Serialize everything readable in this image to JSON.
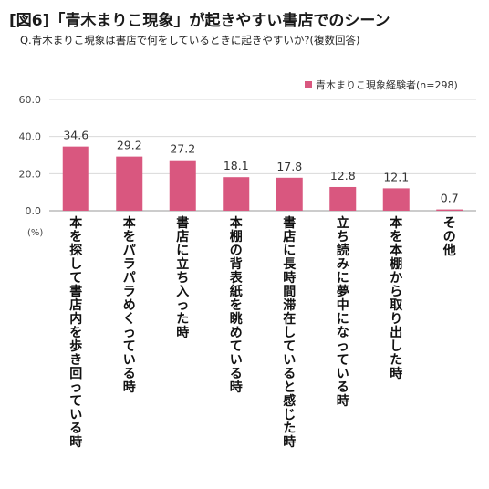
{
  "title": "[図6]「青木まりこ現象」が起きやすい書店でのシーン",
  "subtitle": "Q.青木まりこ現象は書店で何をしているときに起きやすいか?(複数回答)",
  "colors": {
    "bar": "#d9577f",
    "grid": "#d9d9d9",
    "axis": "#999999"
  },
  "chart_data": {
    "type": "bar",
    "unit_label": "(%)",
    "ylim": [
      0,
      60
    ],
    "yticks": [
      "0.0",
      "20.0",
      "40.0",
      "60.0"
    ],
    "grid": true,
    "legend_position": "top-right",
    "categories": [
      "本を探して書店内を歩き回っている時",
      "本をパラパラめくっている時",
      "書店に立ち入った時",
      "本棚の背表紙を眺めている時",
      "書店に長時間滞在していると感じた時",
      "立ち読みに夢中になっている時",
      "本を本棚から取り出した時",
      "その他"
    ],
    "series": [
      {
        "name": "青木まりこ現象経験者(n=298)",
        "values": [
          34.6,
          29.2,
          27.2,
          18.1,
          17.8,
          12.8,
          12.1,
          0.7
        ],
        "labels": [
          "34.6",
          "29.2",
          "27.2",
          "18.1",
          "17.8",
          "12.8",
          "12.1",
          "0.7"
        ]
      }
    ]
  }
}
